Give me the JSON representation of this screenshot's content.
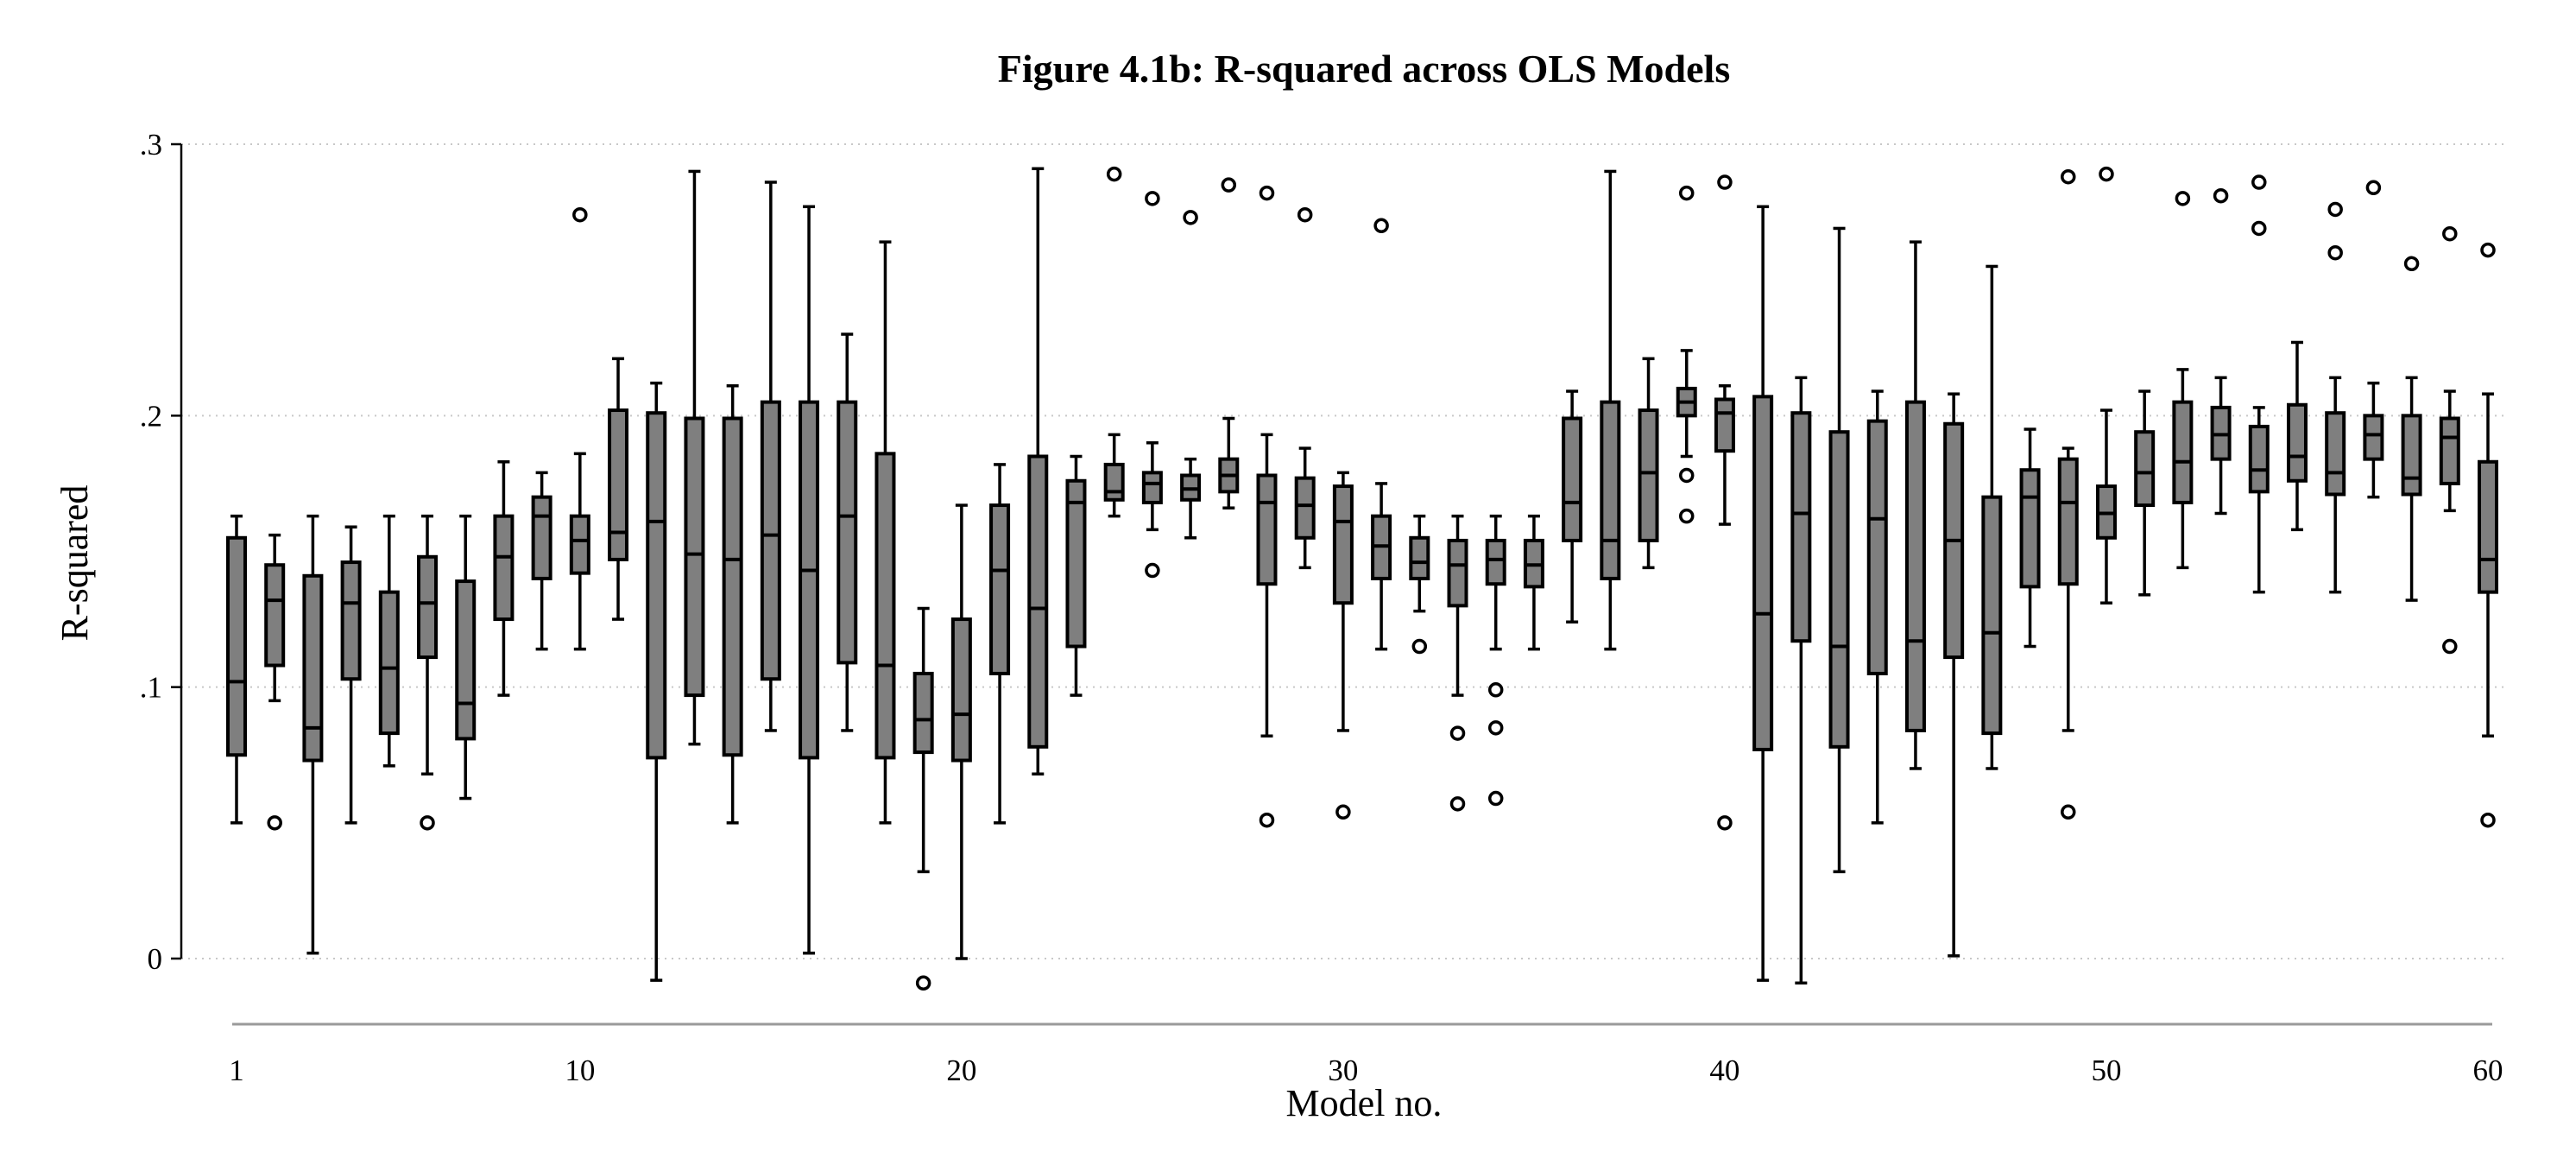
{
  "chart_data": {
    "type": "box",
    "title": "Figure 4.1b: R-squared across OLS Models",
    "xlabel": "Model no.",
    "ylabel": "R-squared",
    "ylim": [
      -0.023,
      0.3
    ],
    "xlim": [
      1,
      60
    ],
    "y_ticks": [
      {
        "value": 0,
        "label": "0"
      },
      {
        "value": 0.1,
        "label": ".1"
      },
      {
        "value": 0.2,
        "label": ".2"
      },
      {
        "value": 0.3,
        "label": ".3"
      }
    ],
    "x_ticks": [
      {
        "value": 1,
        "label": "1"
      },
      {
        "value": 10,
        "label": "10"
      },
      {
        "value": 20,
        "label": "20"
      },
      {
        "value": 30,
        "label": "30"
      },
      {
        "value": 40,
        "label": "40"
      },
      {
        "value": 50,
        "label": "50"
      },
      {
        "value": 60,
        "label": "60"
      }
    ],
    "grid": "horizontal dotted",
    "colors": {
      "box_fill": "#7f7f7f",
      "outline": "#000000",
      "grid": "#c8c8c8"
    },
    "boxes": [
      {
        "model": 1,
        "low": 0.05,
        "q1": 0.075,
        "median": 0.102,
        "q3": 0.155,
        "high": 0.163,
        "outliers": []
      },
      {
        "model": 2,
        "low": 0.095,
        "q1": 0.108,
        "median": 0.132,
        "q3": 0.145,
        "high": 0.156,
        "outliers": [
          0.05
        ]
      },
      {
        "model": 3,
        "low": 0.002,
        "q1": 0.073,
        "median": 0.085,
        "q3": 0.141,
        "high": 0.163,
        "outliers": []
      },
      {
        "model": 4,
        "low": 0.05,
        "q1": 0.103,
        "median": 0.131,
        "q3": 0.146,
        "high": 0.159,
        "outliers": []
      },
      {
        "model": 5,
        "low": 0.071,
        "q1": 0.083,
        "median": 0.107,
        "q3": 0.135,
        "high": 0.163,
        "outliers": []
      },
      {
        "model": 6,
        "low": 0.068,
        "q1": 0.111,
        "median": 0.131,
        "q3": 0.148,
        "high": 0.163,
        "outliers": [
          0.05
        ]
      },
      {
        "model": 7,
        "low": 0.059,
        "q1": 0.081,
        "median": 0.094,
        "q3": 0.139,
        "high": 0.163,
        "outliers": []
      },
      {
        "model": 8,
        "low": 0.097,
        "q1": 0.125,
        "median": 0.148,
        "q3": 0.163,
        "high": 0.183,
        "outliers": []
      },
      {
        "model": 9,
        "low": 0.114,
        "q1": 0.14,
        "median": 0.163,
        "q3": 0.17,
        "high": 0.179,
        "outliers": []
      },
      {
        "model": 10,
        "low": 0.114,
        "q1": 0.142,
        "median": 0.154,
        "q3": 0.163,
        "high": 0.186,
        "outliers": [
          0.274
        ]
      },
      {
        "model": 11,
        "low": 0.125,
        "q1": 0.147,
        "median": 0.157,
        "q3": 0.202,
        "high": 0.221,
        "outliers": []
      },
      {
        "model": 12,
        "low": -0.008,
        "q1": 0.074,
        "median": 0.161,
        "q3": 0.201,
        "high": 0.212,
        "outliers": []
      },
      {
        "model": 13,
        "low": 0.079,
        "q1": 0.097,
        "median": 0.149,
        "q3": 0.199,
        "high": 0.29,
        "outliers": []
      },
      {
        "model": 14,
        "low": 0.05,
        "q1": 0.075,
        "median": 0.147,
        "q3": 0.199,
        "high": 0.211,
        "outliers": []
      },
      {
        "model": 15,
        "low": 0.084,
        "q1": 0.103,
        "median": 0.156,
        "q3": 0.205,
        "high": 0.286,
        "outliers": []
      },
      {
        "model": 16,
        "low": 0.002,
        "q1": 0.074,
        "median": 0.143,
        "q3": 0.205,
        "high": 0.277,
        "outliers": []
      },
      {
        "model": 17,
        "low": 0.084,
        "q1": 0.109,
        "median": 0.163,
        "q3": 0.205,
        "high": 0.23,
        "outliers": []
      },
      {
        "model": 18,
        "low": 0.05,
        "q1": 0.074,
        "median": 0.108,
        "q3": 0.186,
        "high": 0.264,
        "outliers": []
      },
      {
        "model": 19,
        "low": 0.032,
        "q1": 0.076,
        "median": 0.088,
        "q3": 0.105,
        "high": 0.129,
        "outliers": [
          -0.009
        ]
      },
      {
        "model": 20,
        "low": 0.0,
        "q1": 0.073,
        "median": 0.09,
        "q3": 0.125,
        "high": 0.167,
        "outliers": []
      },
      {
        "model": 21,
        "low": 0.05,
        "q1": 0.105,
        "median": 0.143,
        "q3": 0.167,
        "high": 0.182,
        "outliers": []
      },
      {
        "model": 22,
        "low": 0.068,
        "q1": 0.078,
        "median": 0.129,
        "q3": 0.185,
        "high": 0.291,
        "outliers": []
      },
      {
        "model": 23,
        "low": 0.097,
        "q1": 0.115,
        "median": 0.168,
        "q3": 0.176,
        "high": 0.185,
        "outliers": []
      },
      {
        "model": 24,
        "low": 0.163,
        "q1": 0.169,
        "median": 0.172,
        "q3": 0.182,
        "high": 0.193,
        "outliers": [
          0.289
        ]
      },
      {
        "model": 25,
        "low": 0.158,
        "q1": 0.168,
        "median": 0.175,
        "q3": 0.179,
        "high": 0.19,
        "outliers": [
          0.143,
          0.28
        ]
      },
      {
        "model": 26,
        "low": 0.155,
        "q1": 0.169,
        "median": 0.173,
        "q3": 0.178,
        "high": 0.184,
        "outliers": [
          0.273
        ]
      },
      {
        "model": 27,
        "low": 0.166,
        "q1": 0.172,
        "median": 0.178,
        "q3": 0.184,
        "high": 0.199,
        "outliers": [
          0.285
        ]
      },
      {
        "model": 28,
        "low": 0.082,
        "q1": 0.138,
        "median": 0.168,
        "q3": 0.178,
        "high": 0.193,
        "outliers": [
          0.051,
          0.282
        ]
      },
      {
        "model": 29,
        "low": 0.144,
        "q1": 0.155,
        "median": 0.167,
        "q3": 0.177,
        "high": 0.188,
        "outliers": [
          0.274
        ]
      },
      {
        "model": 30,
        "low": 0.084,
        "q1": 0.131,
        "median": 0.161,
        "q3": 0.174,
        "high": 0.179,
        "outliers": [
          0.054
        ]
      },
      {
        "model": 31,
        "low": 0.114,
        "q1": 0.14,
        "median": 0.152,
        "q3": 0.163,
        "high": 0.175,
        "outliers": [
          0.27
        ]
      },
      {
        "model": 32,
        "low": 0.128,
        "q1": 0.14,
        "median": 0.146,
        "q3": 0.155,
        "high": 0.163,
        "outliers": [
          0.115
        ]
      },
      {
        "model": 33,
        "low": 0.097,
        "q1": 0.13,
        "median": 0.145,
        "q3": 0.154,
        "high": 0.163,
        "outliers": [
          0.057,
          0.083
        ]
      },
      {
        "model": 34,
        "low": 0.114,
        "q1": 0.138,
        "median": 0.147,
        "q3": 0.154,
        "high": 0.163,
        "outliers": [
          0.059,
          0.085,
          0.099
        ]
      },
      {
        "model": 35,
        "low": 0.114,
        "q1": 0.137,
        "median": 0.145,
        "q3": 0.154,
        "high": 0.163,
        "outliers": []
      },
      {
        "model": 36,
        "low": 0.124,
        "q1": 0.154,
        "median": 0.168,
        "q3": 0.199,
        "high": 0.209,
        "outliers": []
      },
      {
        "model": 37,
        "low": 0.114,
        "q1": 0.14,
        "median": 0.154,
        "q3": 0.205,
        "high": 0.29,
        "outliers": []
      },
      {
        "model": 38,
        "low": 0.144,
        "q1": 0.154,
        "median": 0.179,
        "q3": 0.202,
        "high": 0.221,
        "outliers": []
      },
      {
        "model": 39,
        "low": 0.185,
        "q1": 0.2,
        "median": 0.205,
        "q3": 0.21,
        "high": 0.224,
        "outliers": [
          0.163,
          0.178,
          0.282
        ]
      },
      {
        "model": 40,
        "low": 0.16,
        "q1": 0.187,
        "median": 0.201,
        "q3": 0.206,
        "high": 0.211,
        "outliers": [
          0.05,
          0.286
        ]
      },
      {
        "model": 41,
        "low": -0.008,
        "q1": 0.077,
        "median": 0.127,
        "q3": 0.207,
        "high": 0.277,
        "outliers": []
      },
      {
        "model": 42,
        "low": -0.009,
        "q1": 0.117,
        "median": 0.164,
        "q3": 0.201,
        "high": 0.214,
        "outliers": []
      },
      {
        "model": 43,
        "low": 0.032,
        "q1": 0.078,
        "median": 0.115,
        "q3": 0.194,
        "high": 0.269,
        "outliers": []
      },
      {
        "model": 44,
        "low": 0.05,
        "q1": 0.105,
        "median": 0.162,
        "q3": 0.198,
        "high": 0.209,
        "outliers": []
      },
      {
        "model": 45,
        "low": 0.07,
        "q1": 0.084,
        "median": 0.117,
        "q3": 0.205,
        "high": 0.264,
        "outliers": []
      },
      {
        "model": 46,
        "low": 0.001,
        "q1": 0.111,
        "median": 0.154,
        "q3": 0.197,
        "high": 0.208,
        "outliers": []
      },
      {
        "model": 47,
        "low": 0.07,
        "q1": 0.083,
        "median": 0.12,
        "q3": 0.17,
        "high": 0.255,
        "outliers": []
      },
      {
        "model": 48,
        "low": 0.115,
        "q1": 0.137,
        "median": 0.17,
        "q3": 0.18,
        "high": 0.195,
        "outliers": []
      },
      {
        "model": 49,
        "low": 0.084,
        "q1": 0.138,
        "median": 0.168,
        "q3": 0.184,
        "high": 0.188,
        "outliers": [
          0.054,
          0.288
        ]
      },
      {
        "model": 50,
        "low": 0.131,
        "q1": 0.155,
        "median": 0.164,
        "q3": 0.174,
        "high": 0.202,
        "outliers": [
          0.289
        ]
      },
      {
        "model": 51,
        "low": 0.134,
        "q1": 0.167,
        "median": 0.179,
        "q3": 0.194,
        "high": 0.209,
        "outliers": []
      },
      {
        "model": 52,
        "low": 0.144,
        "q1": 0.168,
        "median": 0.183,
        "q3": 0.205,
        "high": 0.217,
        "outliers": [
          0.28
        ]
      },
      {
        "model": 53,
        "low": 0.164,
        "q1": 0.184,
        "median": 0.193,
        "q3": 0.203,
        "high": 0.214,
        "outliers": [
          0.281
        ]
      },
      {
        "model": 54,
        "low": 0.135,
        "q1": 0.172,
        "median": 0.18,
        "q3": 0.196,
        "high": 0.203,
        "outliers": [
          0.269,
          0.286
        ]
      },
      {
        "model": 55,
        "low": 0.158,
        "q1": 0.176,
        "median": 0.185,
        "q3": 0.204,
        "high": 0.227,
        "outliers": []
      },
      {
        "model": 56,
        "low": 0.135,
        "q1": 0.171,
        "median": 0.179,
        "q3": 0.201,
        "high": 0.214,
        "outliers": [
          0.26,
          0.276
        ]
      },
      {
        "model": 57,
        "low": 0.17,
        "q1": 0.184,
        "median": 0.193,
        "q3": 0.2,
        "high": 0.212,
        "outliers": [
          0.284
        ]
      },
      {
        "model": 58,
        "low": 0.132,
        "q1": 0.171,
        "median": 0.177,
        "q3": 0.2,
        "high": 0.214,
        "outliers": [
          0.256
        ]
      },
      {
        "model": 59,
        "low": 0.165,
        "q1": 0.175,
        "median": 0.192,
        "q3": 0.199,
        "high": 0.209,
        "outliers": [
          0.115,
          0.267
        ]
      },
      {
        "model": 60,
        "low": 0.082,
        "q1": 0.135,
        "median": 0.147,
        "q3": 0.183,
        "high": 0.208,
        "outliers": [
          0.051,
          0.261
        ]
      }
    ]
  }
}
